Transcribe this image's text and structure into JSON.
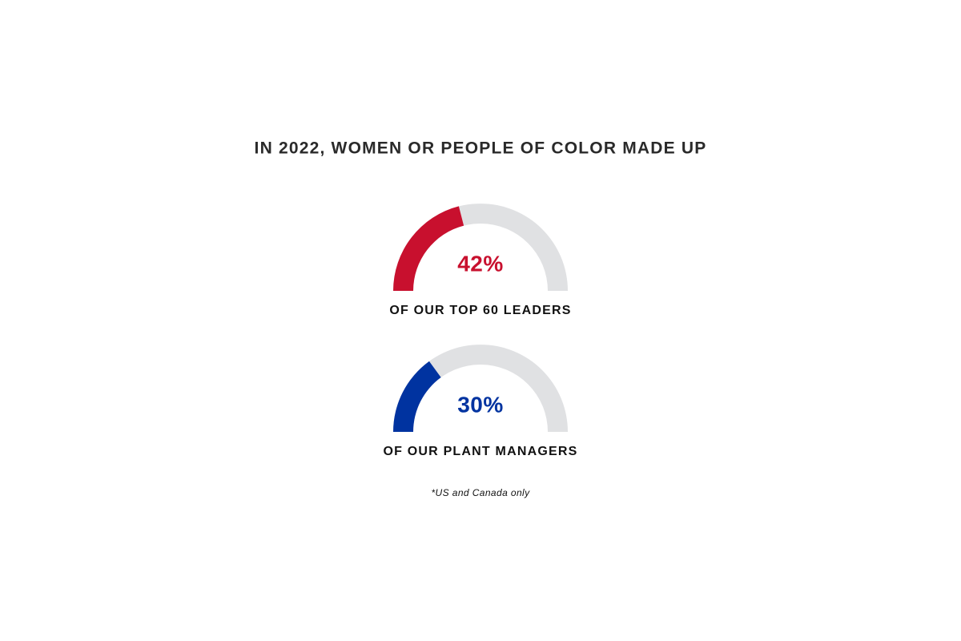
{
  "title": "IN 2022, WOMEN OR PEOPLE OF COLOR MADE UP",
  "chart_data": [
    {
      "type": "gauge",
      "values": [
        42
      ],
      "value_labels": [
        "42%"
      ],
      "label": "OF OUR TOP 60 LEADERS",
      "color": "#c8102e",
      "track_color": "#e0e1e3",
      "ylim": [
        0,
        100
      ]
    },
    {
      "type": "gauge",
      "values": [
        30
      ],
      "value_labels": [
        "30%"
      ],
      "label": "OF OUR PLANT MANAGERS",
      "color": "#0033a0",
      "track_color": "#e0e1e3",
      "ylim": [
        0,
        100
      ]
    }
  ],
  "footnote": "*US and Canada only"
}
